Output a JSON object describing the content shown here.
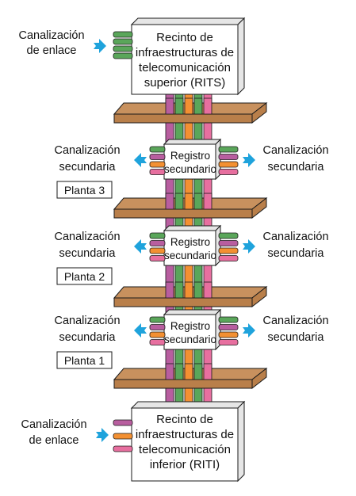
{
  "rits": {
    "lines": [
      "Recinto de",
      "infraestructuras de",
      "telecomunicación",
      "superior (RITS)"
    ],
    "side_label": [
      "Canalización",
      "de enlace"
    ]
  },
  "riti": {
    "lines": [
      "Recinto de",
      "infraestructuras de",
      "telecomunicación",
      "inferior (RITI)"
    ],
    "side_label": [
      "Canalización",
      "de enlace"
    ]
  },
  "floors": [
    {
      "planta": "Planta 3",
      "registro": [
        "Registro",
        "secundario"
      ],
      "left_label": [
        "Canalización",
        "secundaria"
      ],
      "right_label": [
        "Canalización",
        "secundaria"
      ]
    },
    {
      "planta": "Planta 2",
      "registro": [
        "Registro",
        "secundario"
      ],
      "left_label": [
        "Canalización",
        "secundaria"
      ],
      "right_label": [
        "Canalización",
        "secundaria"
      ]
    },
    {
      "planta": "Planta 1",
      "registro": [
        "Registro",
        "secundario"
      ],
      "left_label": [
        "Canalización",
        "secundaria"
      ],
      "right_label": [
        "Canalización",
        "secundaria"
      ]
    }
  ],
  "colors": {
    "slab_top": "#c8915e",
    "slab_front": "#b97f4a",
    "arrow": "#1fa3dc",
    "pipe_purple": "#b85e9f",
    "pipe_green": "#5aa65a",
    "pipe_orange": "#f39032",
    "pipe_pink": "#e76f9f",
    "box_fill": "#ffffff",
    "box_side": "#e6e6e6",
    "stroke": "#1a1a1a"
  }
}
